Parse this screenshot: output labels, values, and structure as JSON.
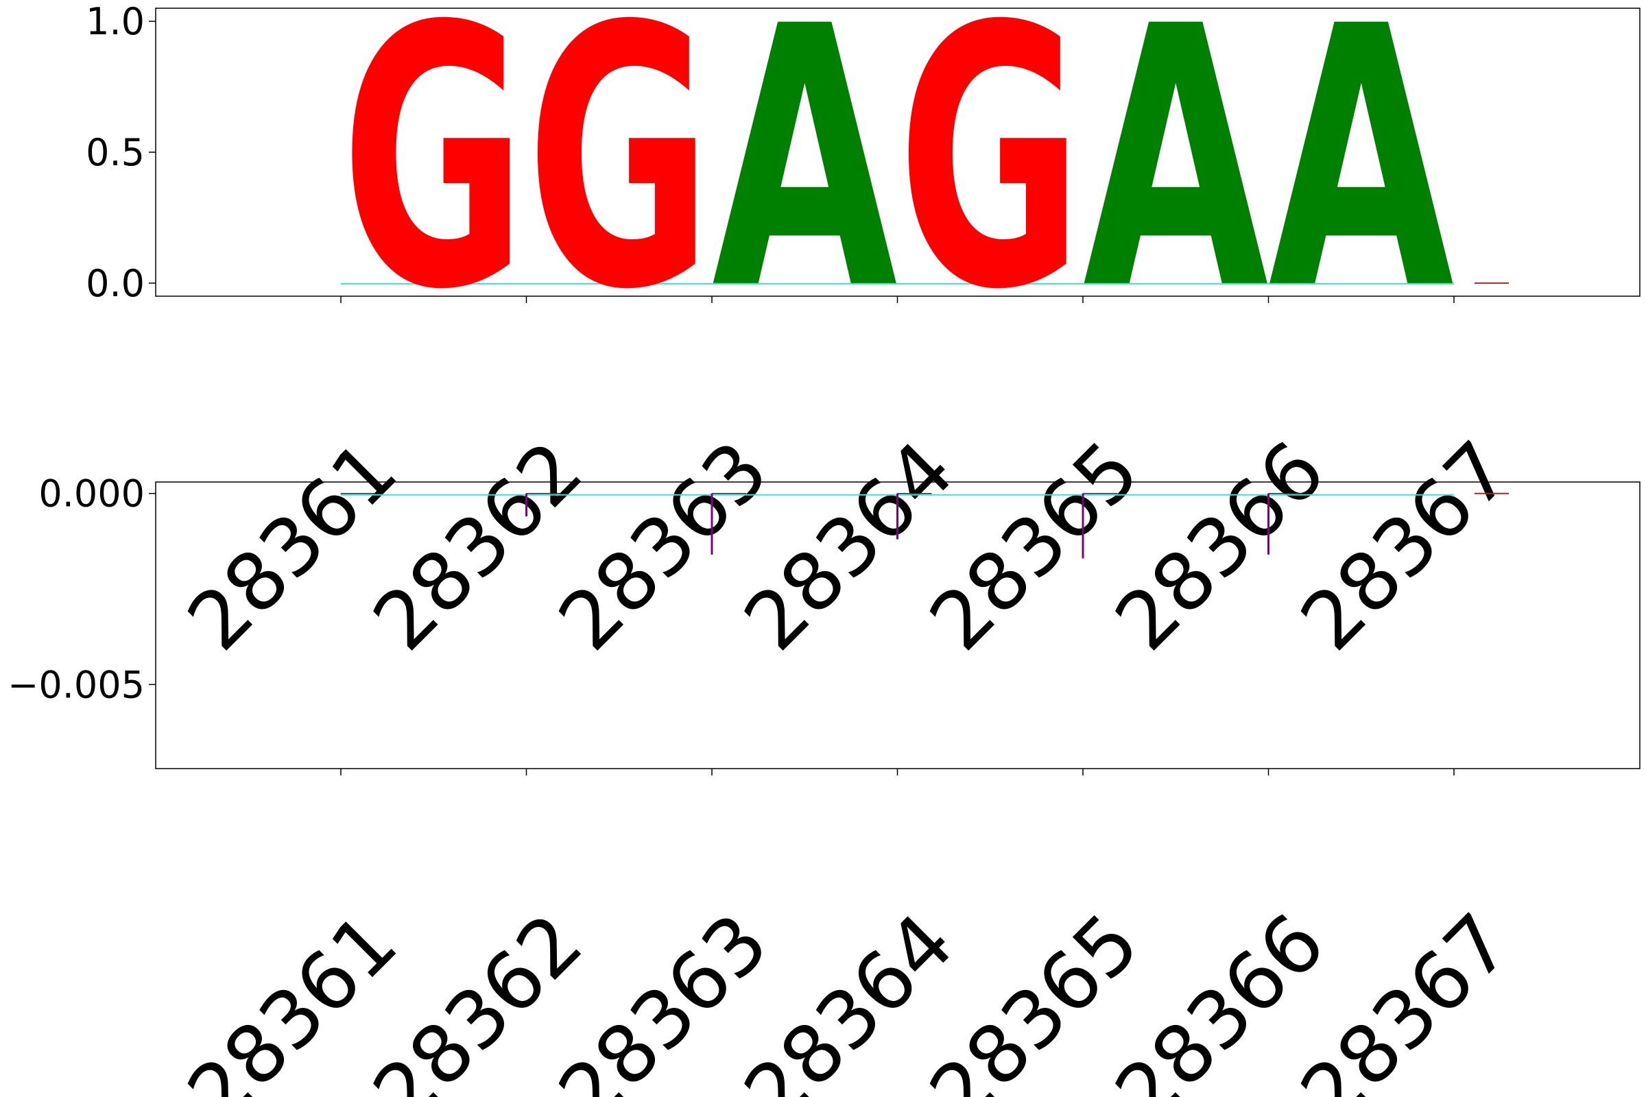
{
  "chart_data": [
    {
      "type": "sequence-logo",
      "xlabel": "",
      "ylabel": "",
      "x_tick_labels": [
        "28361",
        "28362",
        "28363",
        "28364",
        "28365",
        "28366",
        "28367"
      ],
      "y_tick_labels": [
        "0.0",
        "0.5",
        "1.0"
      ],
      "ylim": [
        -0.05,
        1.05
      ],
      "y_ticks": [
        0.0,
        0.5,
        1.0
      ],
      "grid": false,
      "letters": [
        {
          "position": 28361,
          "letter": "G",
          "height": 1.0,
          "color": "#ff0000"
        },
        {
          "position": 28362,
          "letter": "G",
          "height": 1.0,
          "color": "#ff0000"
        },
        {
          "position": 28363,
          "letter": "A",
          "height": 1.0,
          "color": "#008000"
        },
        {
          "position": 28364,
          "letter": "G",
          "height": 1.0,
          "color": "#ff0000"
        },
        {
          "position": 28365,
          "letter": "A",
          "height": 1.0,
          "color": "#008000"
        },
        {
          "position": 28366,
          "letter": "A",
          "height": 1.0,
          "color": "#008000"
        }
      ],
      "baseline_color": "#40e0d0",
      "end_marker": {
        "position": 28367,
        "color": "#b22222"
      }
    },
    {
      "type": "bar",
      "xlabel": "",
      "ylabel": "",
      "x_tick_labels": [
        "28361",
        "28362",
        "28363",
        "28364",
        "28365",
        "28366",
        "28367"
      ],
      "y_tick_labels": [
        "0.000",
        "−0.005"
      ],
      "y_ticks": [
        0.0,
        -0.005
      ],
      "ylim": [
        -0.0072,
        0.0003
      ],
      "grid": false,
      "x": [
        28361,
        28362,
        28363,
        28364,
        28365,
        28366
      ],
      "values": [
        0.0,
        -0.0006,
        -0.0016,
        -0.0012,
        -0.0017,
        -0.0016
      ],
      "bar_color": "#800080",
      "baseline_color": "#40e0d0",
      "end_marker": {
        "position": 28367,
        "color": "#b22222"
      }
    }
  ]
}
